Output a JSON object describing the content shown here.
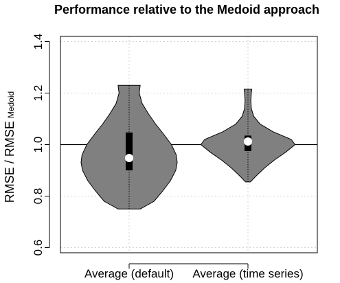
{
  "chart_data": {
    "type": "violin",
    "title": "Performance relative to the Medoid approach",
    "ylabel_main": "RMSE / RMSE",
    "ylabel_subscript": "Medoid",
    "xlabel": "",
    "categories": [
      "Average (default)",
      "Average (time series)"
    ],
    "ylim": [
      0.58,
      1.42
    ],
    "yticks": [
      0.6,
      0.8,
      1.0,
      1.2,
      1.4
    ],
    "ytick_labels": [
      "0.6",
      "0.8",
      "1.0",
      "1.2",
      "1.4"
    ],
    "reference_line": 1.0,
    "grid": true,
    "colors": {
      "violin": "#808080",
      "box": "#000000",
      "median": "#ffffff",
      "grid": "#d3d3d3"
    },
    "violins": [
      {
        "name": "Average (default)",
        "min": 0.75,
        "max": 1.23,
        "q1": 0.9,
        "median": 0.948,
        "q3": 1.047,
        "shape": [
          [
            0.75,
            0.23
          ],
          [
            0.78,
            0.52
          ],
          [
            0.82,
            0.7
          ],
          [
            0.86,
            0.86
          ],
          [
            0.9,
            0.97
          ],
          [
            0.93,
            1.0
          ],
          [
            0.96,
            0.98
          ],
          [
            1.0,
            0.88
          ],
          [
            1.04,
            0.72
          ],
          [
            1.08,
            0.55
          ],
          [
            1.12,
            0.4
          ],
          [
            1.16,
            0.27
          ],
          [
            1.2,
            0.21
          ],
          [
            1.23,
            0.23
          ]
        ]
      },
      {
        "name": "Average (time series)",
        "min": 0.855,
        "max": 1.215,
        "q1": 0.975,
        "median": 1.012,
        "q3": 1.035,
        "shape": [
          [
            0.855,
            0.05
          ],
          [
            0.88,
            0.18
          ],
          [
            0.91,
            0.35
          ],
          [
            0.94,
            0.55
          ],
          [
            0.97,
            0.78
          ],
          [
            1.0,
            0.98
          ],
          [
            1.02,
            0.9
          ],
          [
            1.05,
            0.52
          ],
          [
            1.08,
            0.25
          ],
          [
            1.11,
            0.12
          ],
          [
            1.14,
            0.07
          ],
          [
            1.17,
            0.06
          ],
          [
            1.2,
            0.07
          ],
          [
            1.215,
            0.08
          ]
        ]
      }
    ]
  }
}
